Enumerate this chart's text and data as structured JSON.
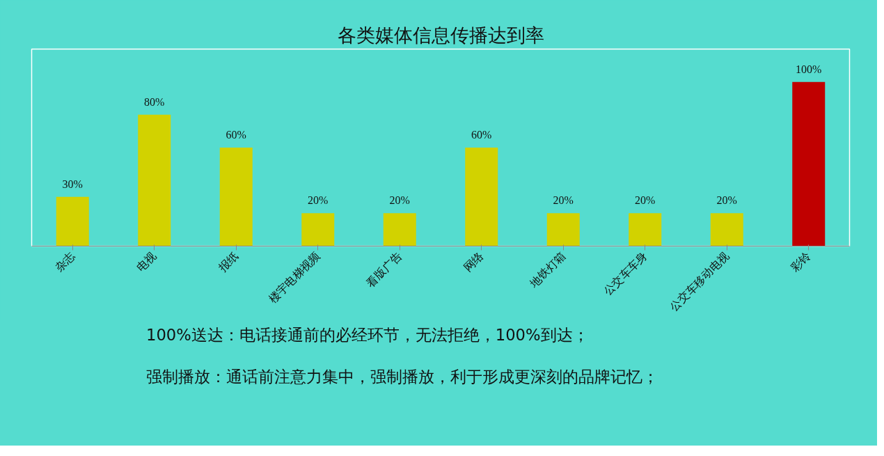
{
  "chart_data": {
    "type": "bar",
    "title": "各类媒体信息传播达到率",
    "categories": [
      "杂志",
      "电视",
      "报纸",
      "楼宇电梯视频",
      "看版广告",
      "网络",
      "地铁灯箱",
      "公交车车身",
      "公交车移动电视",
      "彩铃"
    ],
    "values": [
      30,
      80,
      60,
      20,
      20,
      60,
      20,
      20,
      20,
      100
    ],
    "value_labels": [
      "30%",
      "80%",
      "60%",
      "20%",
      "20%",
      "60%",
      "20%",
      "20%",
      "20%",
      "100%"
    ],
    "colors": [
      "#d2d200",
      "#d2d200",
      "#d2d200",
      "#d2d200",
      "#d2d200",
      "#d2d200",
      "#d2d200",
      "#d2d200",
      "#d2d200",
      "#c00000"
    ],
    "annotations": [
      "100%送达：电话接通前的必经环节，无法拒绝，100%到达；",
      "强制播放：通话前注意力集中，强制播放，利于形成更深刻的品牌记忆；"
    ],
    "tick_labels": "x",
    "grid": false
  }
}
